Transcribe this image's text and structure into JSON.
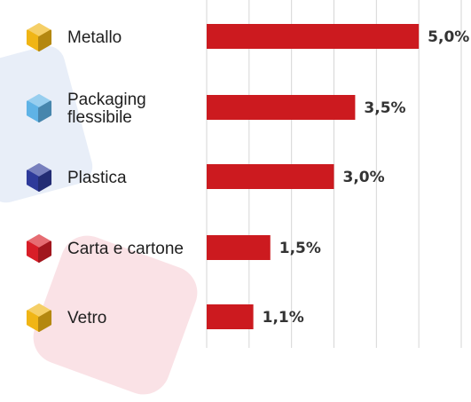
{
  "chart_data": {
    "type": "bar",
    "orientation": "horizontal",
    "categories": [
      {
        "label_lines": [
          "Metallo"
        ],
        "icon": "metal-cube-icon",
        "icon_color": "#f0b515"
      },
      {
        "label_lines": [
          "Packaging",
          "flessibile"
        ],
        "icon": "packaging-cube-icon",
        "icon_color": "#5fb3e6"
      },
      {
        "label_lines": [
          "Plastica"
        ],
        "icon": "plastic-cube-icon",
        "icon_color": "#2e3a9a"
      },
      {
        "label_lines": [
          "Carta e cartone"
        ],
        "icon": "paper-cube-icon",
        "icon_color": "#d81e28"
      },
      {
        "label_lines": [
          "Vetro"
        ],
        "icon": "glass-cube-icon",
        "icon_color": "#f0b515"
      }
    ],
    "values": [
      5.0,
      3.5,
      3.0,
      1.5,
      1.1
    ],
    "value_labels": [
      "5,0%",
      "3,5%",
      "3,0%",
      "1,5%",
      "1,1%"
    ],
    "xlim": [
      0,
      6.0
    ],
    "grid_step": 1.0,
    "grid": true,
    "bar_color": "#cc1a1f"
  }
}
